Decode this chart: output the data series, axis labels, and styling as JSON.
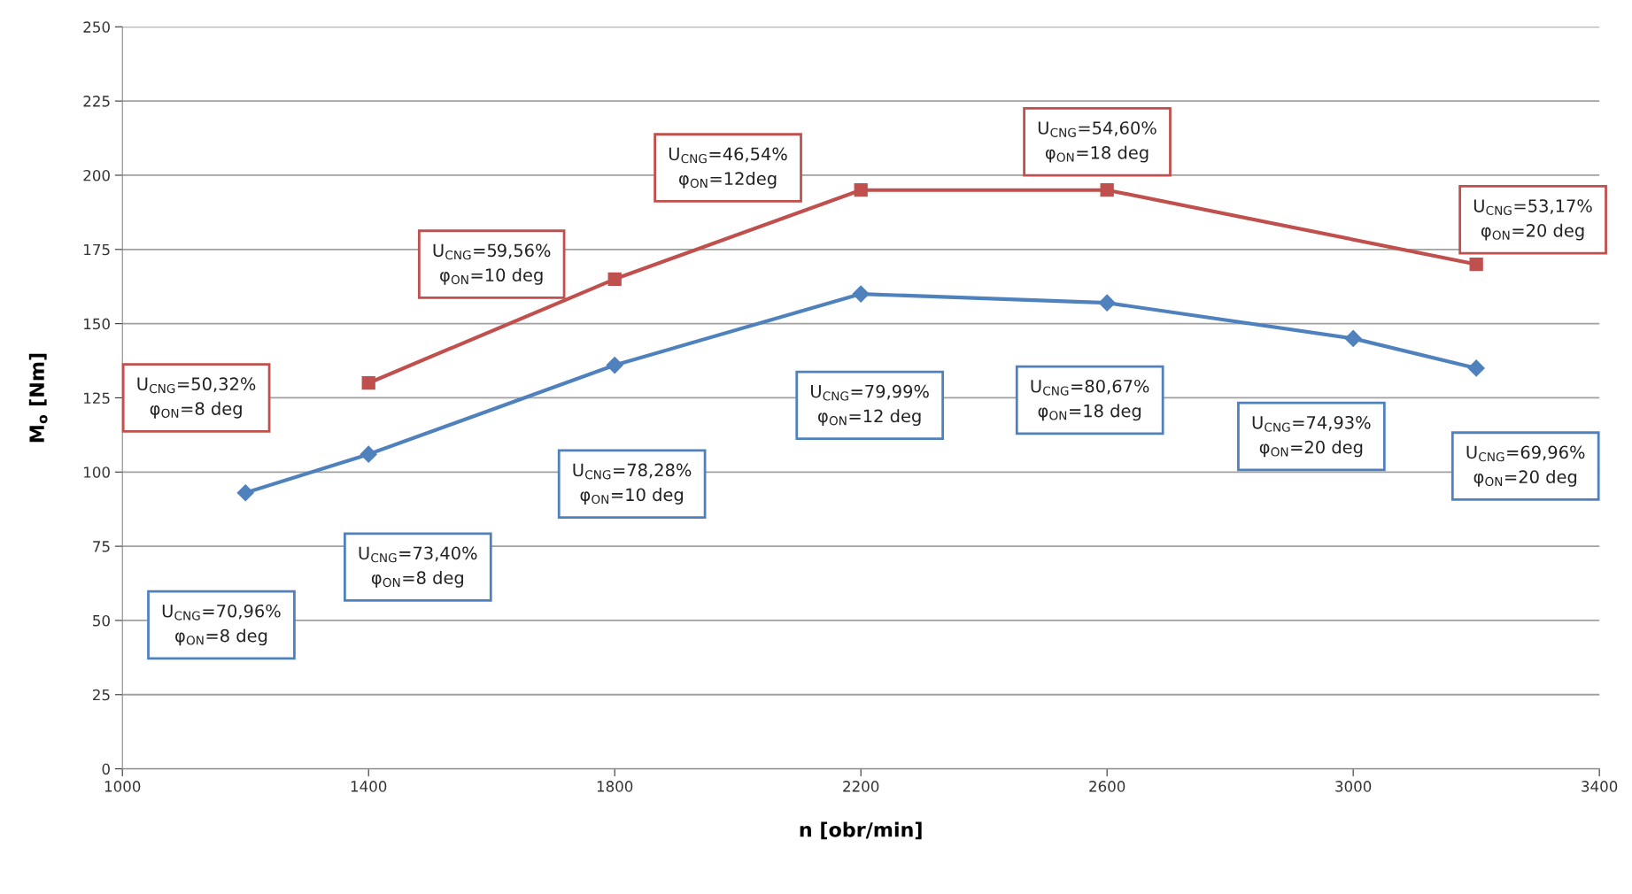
{
  "chart_data": {
    "type": "line",
    "xlabel": "n [obr/min]",
    "ylabel": "M$_{o}$ [Nm]",
    "xlim": [
      1000,
      3400
    ],
    "xticks": [
      1000,
      1400,
      1800,
      2200,
      2600,
      3000,
      3400
    ],
    "ylim": [
      0,
      250
    ],
    "yticks": [
      0,
      25,
      50,
      75,
      100,
      125,
      150,
      175,
      200,
      225,
      250
    ],
    "grid": "y",
    "series": [
      {
        "color": "#c0504d",
        "marker": "square",
        "x": [
          1400,
          1800,
          2200,
          2600,
          3200
        ],
        "values": [
          130,
          165,
          195,
          195,
          170
        ]
      },
      {
        "color": "#4f81bd",
        "marker": "diamond",
        "x": [
          1200,
          1400,
          1800,
          2200,
          2600,
          3000,
          3200
        ],
        "values": [
          93,
          106,
          136,
          160,
          157,
          145,
          135
        ]
      }
    ],
    "annotations": [
      "U$_{CNG}$=50,32%\nφ$_{ON}$=8 deg",
      "U$_{CNG}$=59,56%\nφ$_{ON}$=10 deg",
      "U$_{CNG}$=46,54%\nφ$_{ON}$=12deg",
      "U$_{CNG}$=54,60%\nφ$_{ON}$=18 deg",
      "U$_{CNG}$=53,17%\nφ$_{ON}$=20 deg",
      "U$_{CNG}$=70,96%\nφ$_{ON}$=8 deg",
      "U$_{CNG}$=73,40%\nφ$_{ON}$=8 deg",
      "U$_{CNG}$=78,28%\nφ$_{ON}$=10 deg",
      "U$_{CNG}$=79,99%\nφ$_{ON}$=12 deg",
      "U$_{CNG}$=80,67%\nφ$_{ON}$=18 deg",
      "U$_{CNG}$=74,93%\nφ$_{ON}$=20 deg",
      "U$_{CNG}$=69,96%\nφ$_{ON}$=20 deg"
    ]
  }
}
